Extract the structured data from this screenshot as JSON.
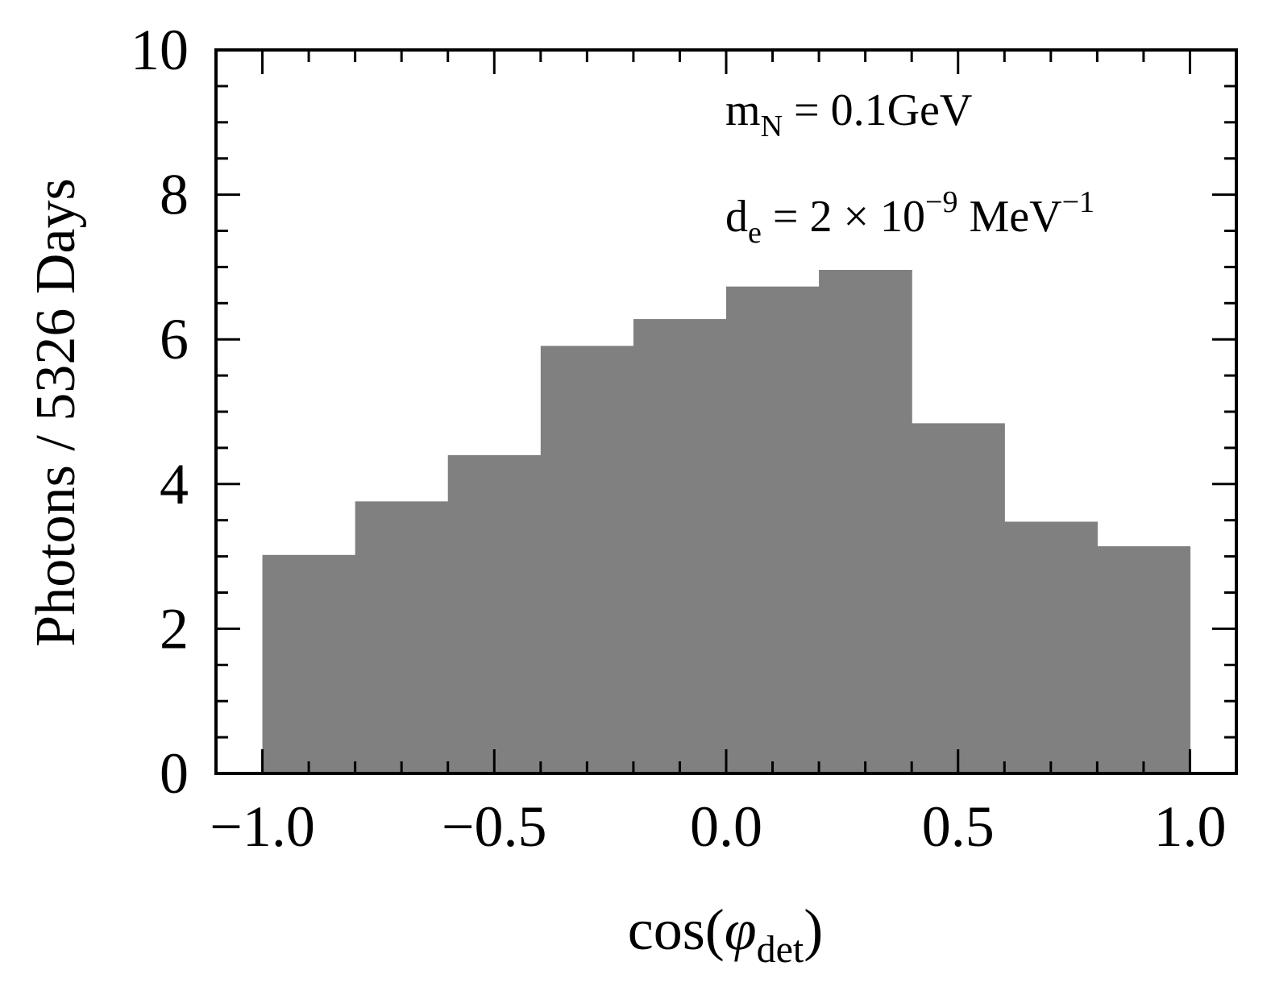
{
  "chart_data": {
    "type": "bar",
    "histogram": true,
    "bin_edges": [
      -1.0,
      -0.8,
      -0.6,
      -0.4,
      -0.2,
      0.0,
      0.2,
      0.4,
      0.6,
      0.8,
      1.0
    ],
    "values": [
      3.02,
      3.76,
      4.4,
      5.91,
      6.28,
      6.73,
      6.96,
      4.84,
      3.48,
      3.14
    ],
    "xlim": [
      -1.1,
      1.1
    ],
    "ylim": [
      0,
      10
    ],
    "xticks": [
      -1.0,
      -0.5,
      0.0,
      0.5,
      1.0
    ],
    "xtick_labels": [
      "−1.0",
      "−0.5",
      "0.0",
      "0.5",
      "1.0"
    ],
    "yticks": [
      0,
      2,
      4,
      6,
      8,
      10
    ],
    "ytick_labels": [
      "0",
      "2",
      "4",
      "6",
      "8",
      "10"
    ],
    "xlabel": {
      "main": "cos(",
      "symbol": "φ",
      "sub": "det",
      "close": ")"
    },
    "ylabel": "Photons / 5326 Days",
    "bar_color": "#808080",
    "grid": false,
    "annotations": [
      {
        "main": "m",
        "sub": "N",
        "rest": " = 0.1GeV"
      },
      {
        "main": "d",
        "sub": "e",
        "rest": " = 2 × 10",
        "sup": "−9",
        "unit": " MeV",
        "unit_sup": "−1"
      }
    ]
  }
}
